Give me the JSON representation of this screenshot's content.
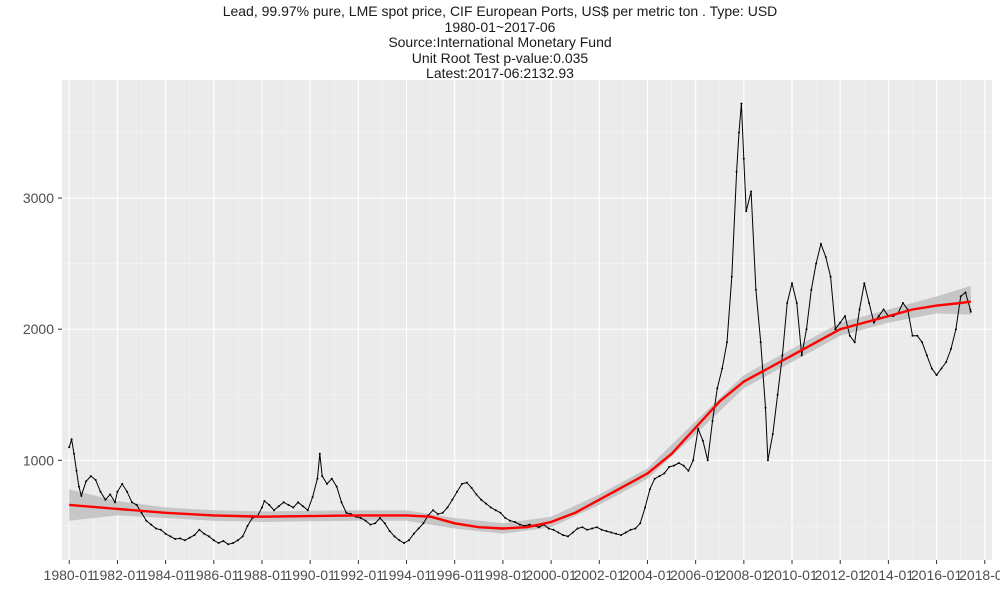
{
  "chart_data": {
    "type": "line",
    "title": "Lead, 99.97% pure, LME spot price, CIF European Ports, US$ per metric ton . Type: USD",
    "subtitle": "1980-01~2017-06",
    "source": "Source:International Monetary Fund",
    "unit_root_test": "Unit Root Test p-value:0.035",
    "latest": "Latest:2017-06:2132.93",
    "xlabel": "",
    "ylabel": "",
    "xlim": [
      1979.7,
      2018.3
    ],
    "ylim": [
      240,
      3900
    ],
    "x_ticks": [
      1980,
      1982,
      1984,
      1986,
      1988,
      1990,
      1992,
      1994,
      1996,
      1998,
      2000,
      2002,
      2004,
      2006,
      2008,
      2010,
      2012,
      2014,
      2016,
      2018
    ],
    "x_tick_labels": [
      "1980-01",
      "1982-01",
      "1984-01",
      "1986-01",
      "1988-01",
      "1990-01",
      "1992-01",
      "1994-01",
      "1996-01",
      "1998-01",
      "2000-01",
      "2002-01",
      "2004-01",
      "2006-01",
      "2008-01",
      "2010-01",
      "2012-01",
      "2014-01",
      "2016-01",
      "2018-01"
    ],
    "y_ticks": [
      1000,
      2000,
      3000
    ],
    "y_tick_labels": [
      "1000",
      "2000",
      "3000"
    ],
    "grid": true,
    "colors": {
      "panel_bg": "#ebebeb",
      "grid_major": "#ffffff",
      "grid_minor": "#f5f5f5",
      "line": "#000000",
      "smooth": "#ff0000",
      "band": "#bfbfbf"
    },
    "series": [
      {
        "points": [
          [
            1980.0,
            1100
          ],
          [
            1980.1,
            1160
          ],
          [
            1980.2,
            1050
          ],
          [
            1980.3,
            920
          ],
          [
            1980.4,
            800
          ],
          [
            1980.5,
            730
          ],
          [
            1980.7,
            840
          ],
          [
            1980.9,
            880
          ],
          [
            1981.1,
            850
          ],
          [
            1981.3,
            760
          ],
          [
            1981.5,
            700
          ],
          [
            1981.7,
            740
          ],
          [
            1981.9,
            680
          ],
          [
            1982.0,
            760
          ],
          [
            1982.2,
            820
          ],
          [
            1982.4,
            760
          ],
          [
            1982.6,
            680
          ],
          [
            1982.8,
            660
          ],
          [
            1983.0,
            600
          ],
          [
            1983.2,
            540
          ],
          [
            1983.4,
            510
          ],
          [
            1983.6,
            480
          ],
          [
            1983.8,
            470
          ],
          [
            1984.0,
            440
          ],
          [
            1984.2,
            420
          ],
          [
            1984.4,
            400
          ],
          [
            1984.6,
            405
          ],
          [
            1984.8,
            390
          ],
          [
            1985.0,
            410
          ],
          [
            1985.2,
            430
          ],
          [
            1985.4,
            470
          ],
          [
            1985.6,
            440
          ],
          [
            1985.8,
            420
          ],
          [
            1986.0,
            390
          ],
          [
            1986.2,
            370
          ],
          [
            1986.4,
            385
          ],
          [
            1986.6,
            360
          ],
          [
            1986.8,
            370
          ],
          [
            1987.0,
            390
          ],
          [
            1987.2,
            420
          ],
          [
            1987.4,
            500
          ],
          [
            1987.6,
            560
          ],
          [
            1987.8,
            570
          ],
          [
            1988.0,
            640
          ],
          [
            1988.1,
            690
          ],
          [
            1988.3,
            660
          ],
          [
            1988.5,
            620
          ],
          [
            1988.7,
            650
          ],
          [
            1988.9,
            680
          ],
          [
            1989.1,
            660
          ],
          [
            1989.3,
            640
          ],
          [
            1989.5,
            680
          ],
          [
            1989.7,
            650
          ],
          [
            1989.9,
            620
          ],
          [
            1990.1,
            720
          ],
          [
            1990.3,
            860
          ],
          [
            1990.4,
            1050
          ],
          [
            1990.5,
            880
          ],
          [
            1990.7,
            820
          ],
          [
            1990.9,
            860
          ],
          [
            1991.1,
            800
          ],
          [
            1991.3,
            680
          ],
          [
            1991.5,
            600
          ],
          [
            1991.7,
            590
          ],
          [
            1991.9,
            570
          ],
          [
            1992.1,
            560
          ],
          [
            1992.3,
            540
          ],
          [
            1992.5,
            510
          ],
          [
            1992.7,
            520
          ],
          [
            1992.9,
            560
          ],
          [
            1993.1,
            520
          ],
          [
            1993.3,
            460
          ],
          [
            1993.5,
            420
          ],
          [
            1993.7,
            390
          ],
          [
            1993.9,
            370
          ],
          [
            1994.1,
            390
          ],
          [
            1994.3,
            440
          ],
          [
            1994.5,
            480
          ],
          [
            1994.7,
            520
          ],
          [
            1994.9,
            580
          ],
          [
            1995.1,
            620
          ],
          [
            1995.3,
            590
          ],
          [
            1995.5,
            600
          ],
          [
            1995.7,
            640
          ],
          [
            1995.9,
            700
          ],
          [
            1996.1,
            760
          ],
          [
            1996.3,
            820
          ],
          [
            1996.5,
            830
          ],
          [
            1996.7,
            790
          ],
          [
            1996.9,
            740
          ],
          [
            1997.1,
            700
          ],
          [
            1997.3,
            670
          ],
          [
            1997.5,
            640
          ],
          [
            1997.7,
            620
          ],
          [
            1997.9,
            600
          ],
          [
            1998.1,
            560
          ],
          [
            1998.3,
            540
          ],
          [
            1998.5,
            530
          ],
          [
            1998.7,
            510
          ],
          [
            1998.9,
            500
          ],
          [
            1999.1,
            510
          ],
          [
            1999.3,
            500
          ],
          [
            1999.5,
            490
          ],
          [
            1999.7,
            510
          ],
          [
            1999.9,
            480
          ],
          [
            2000.1,
            470
          ],
          [
            2000.3,
            450
          ],
          [
            2000.5,
            430
          ],
          [
            2000.7,
            420
          ],
          [
            2000.9,
            450
          ],
          [
            2001.1,
            480
          ],
          [
            2001.3,
            490
          ],
          [
            2001.5,
            470
          ],
          [
            2001.7,
            480
          ],
          [
            2001.9,
            490
          ],
          [
            2002.1,
            470
          ],
          [
            2002.3,
            460
          ],
          [
            2002.5,
            450
          ],
          [
            2002.7,
            440
          ],
          [
            2002.9,
            430
          ],
          [
            2003.1,
            450
          ],
          [
            2003.3,
            470
          ],
          [
            2003.5,
            480
          ],
          [
            2003.7,
            520
          ],
          [
            2003.9,
            640
          ],
          [
            2004.1,
            780
          ],
          [
            2004.3,
            860
          ],
          [
            2004.5,
            880
          ],
          [
            2004.7,
            900
          ],
          [
            2004.9,
            950
          ],
          [
            2005.1,
            960
          ],
          [
            2005.3,
            980
          ],
          [
            2005.5,
            960
          ],
          [
            2005.7,
            920
          ],
          [
            2005.9,
            1000
          ],
          [
            2006.1,
            1240
          ],
          [
            2006.3,
            1150
          ],
          [
            2006.5,
            1000
          ],
          [
            2006.7,
            1300
          ],
          [
            2006.9,
            1550
          ],
          [
            2007.1,
            1700
          ],
          [
            2007.3,
            1900
          ],
          [
            2007.5,
            2400
          ],
          [
            2007.7,
            3200
          ],
          [
            2007.8,
            3500
          ],
          [
            2007.9,
            3720
          ],
          [
            2008.0,
            3300
          ],
          [
            2008.1,
            2900
          ],
          [
            2008.3,
            3050
          ],
          [
            2008.5,
            2300
          ],
          [
            2008.7,
            1900
          ],
          [
            2008.9,
            1400
          ],
          [
            2009.0,
            1000
          ],
          [
            2009.2,
            1200
          ],
          [
            2009.4,
            1500
          ],
          [
            2009.6,
            1800
          ],
          [
            2009.8,
            2200
          ],
          [
            2010.0,
            2350
          ],
          [
            2010.2,
            2200
          ],
          [
            2010.4,
            1800
          ],
          [
            2010.6,
            2000
          ],
          [
            2010.8,
            2300
          ],
          [
            2011.0,
            2500
          ],
          [
            2011.2,
            2650
          ],
          [
            2011.4,
            2550
          ],
          [
            2011.6,
            2400
          ],
          [
            2011.8,
            2000
          ],
          [
            2012.0,
            2050
          ],
          [
            2012.2,
            2100
          ],
          [
            2012.4,
            1950
          ],
          [
            2012.6,
            1900
          ],
          [
            2012.8,
            2150
          ],
          [
            2013.0,
            2350
          ],
          [
            2013.2,
            2200
          ],
          [
            2013.4,
            2050
          ],
          [
            2013.6,
            2100
          ],
          [
            2013.8,
            2150
          ],
          [
            2014.0,
            2100
          ],
          [
            2014.2,
            2100
          ],
          [
            2014.4,
            2120
          ],
          [
            2014.6,
            2200
          ],
          [
            2014.8,
            2150
          ],
          [
            2015.0,
            1950
          ],
          [
            2015.2,
            1950
          ],
          [
            2015.4,
            1900
          ],
          [
            2015.6,
            1800
          ],
          [
            2015.8,
            1700
          ],
          [
            2016.0,
            1650
          ],
          [
            2016.2,
            1700
          ],
          [
            2016.4,
            1750
          ],
          [
            2016.6,
            1850
          ],
          [
            2016.8,
            2000
          ],
          [
            2017.0,
            2250
          ],
          [
            2017.2,
            2280
          ],
          [
            2017.4,
            2150
          ],
          [
            2017.42,
            2133
          ]
        ]
      },
      {
        "points": [
          [
            1980.0,
            660
          ],
          [
            1982.0,
            630
          ],
          [
            1984.0,
            600
          ],
          [
            1986.0,
            580
          ],
          [
            1988.0,
            570
          ],
          [
            1990.0,
            575
          ],
          [
            1992.0,
            580
          ],
          [
            1994.0,
            580
          ],
          [
            1995.0,
            570
          ],
          [
            1996.0,
            520
          ],
          [
            1997.0,
            490
          ],
          [
            1998.0,
            480
          ],
          [
            1999.0,
            490
          ],
          [
            2000.0,
            530
          ],
          [
            2001.0,
            600
          ],
          [
            2002.0,
            700
          ],
          [
            2003.0,
            800
          ],
          [
            2004.0,
            900
          ],
          [
            2005.0,
            1050
          ],
          [
            2006.0,
            1250
          ],
          [
            2007.0,
            1450
          ],
          [
            2008.0,
            1600
          ],
          [
            2009.0,
            1700
          ],
          [
            2010.0,
            1800
          ],
          [
            2011.0,
            1900
          ],
          [
            2012.0,
            2000
          ],
          [
            2013.0,
            2050
          ],
          [
            2014.0,
            2100
          ],
          [
            2015.0,
            2150
          ],
          [
            2016.0,
            2180
          ],
          [
            2017.0,
            2200
          ],
          [
            2017.42,
            2210
          ]
        ]
      }
    ],
    "confidence_band": [
      [
        1980.0,
        540,
        780
      ],
      [
        1982.0,
        580,
        690
      ],
      [
        1984.0,
        560,
        640
      ],
      [
        1986.0,
        540,
        620
      ],
      [
        1988.0,
        530,
        610
      ],
      [
        1990.0,
        535,
        615
      ],
      [
        1992.0,
        540,
        620
      ],
      [
        1994.0,
        540,
        620
      ],
      [
        1996.0,
        480,
        560
      ],
      [
        1998.0,
        440,
        520
      ],
      [
        2000.0,
        490,
        570
      ],
      [
        2002.0,
        660,
        740
      ],
      [
        2004.0,
        860,
        940
      ],
      [
        2006.0,
        1200,
        1300
      ],
      [
        2008.0,
        1550,
        1650
      ],
      [
        2010.0,
        1750,
        1850
      ],
      [
        2012.0,
        1950,
        2050
      ],
      [
        2014.0,
        2050,
        2150
      ],
      [
        2016.0,
        2120,
        2250
      ],
      [
        2017.42,
        2110,
        2330
      ]
    ]
  }
}
